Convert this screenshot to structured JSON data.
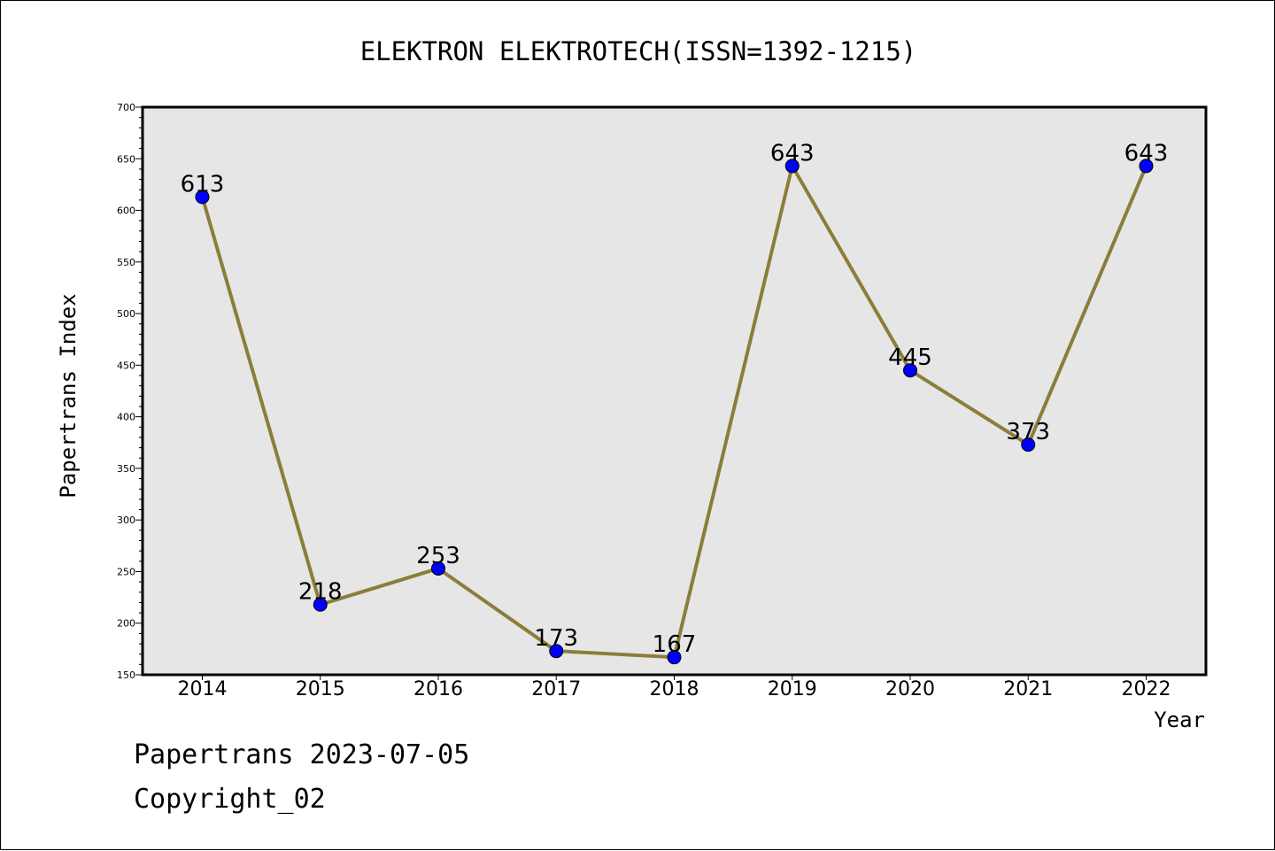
{
  "chart_data": {
    "type": "line",
    "title": "ELEKTRON ELEKTROTECH(ISSN=1392-1215)",
    "xlabel": "Year",
    "ylabel": "Papertrans Index",
    "categories": [
      "2014",
      "2015",
      "2016",
      "2017",
      "2018",
      "2019",
      "2020",
      "2021",
      "2022"
    ],
    "values": [
      613,
      218,
      253,
      173,
      167,
      643,
      445,
      373,
      643
    ],
    "data_labels": [
      "613",
      "218",
      "253",
      "173",
      "167",
      "643",
      "445",
      "373",
      "643"
    ],
    "ylim": [
      150,
      700
    ],
    "y_ticks": [
      "150",
      "200",
      "250",
      "300",
      "350",
      "400",
      "450",
      "500",
      "550",
      "600",
      "650",
      "700"
    ],
    "grid": false,
    "plot_background": "#e6e6e6",
    "line_color": "#8b7d3a",
    "marker_color": "#0000ff"
  },
  "footer": {
    "line1": "Papertrans 2023-07-05",
    "line2": "Copyright_02"
  }
}
